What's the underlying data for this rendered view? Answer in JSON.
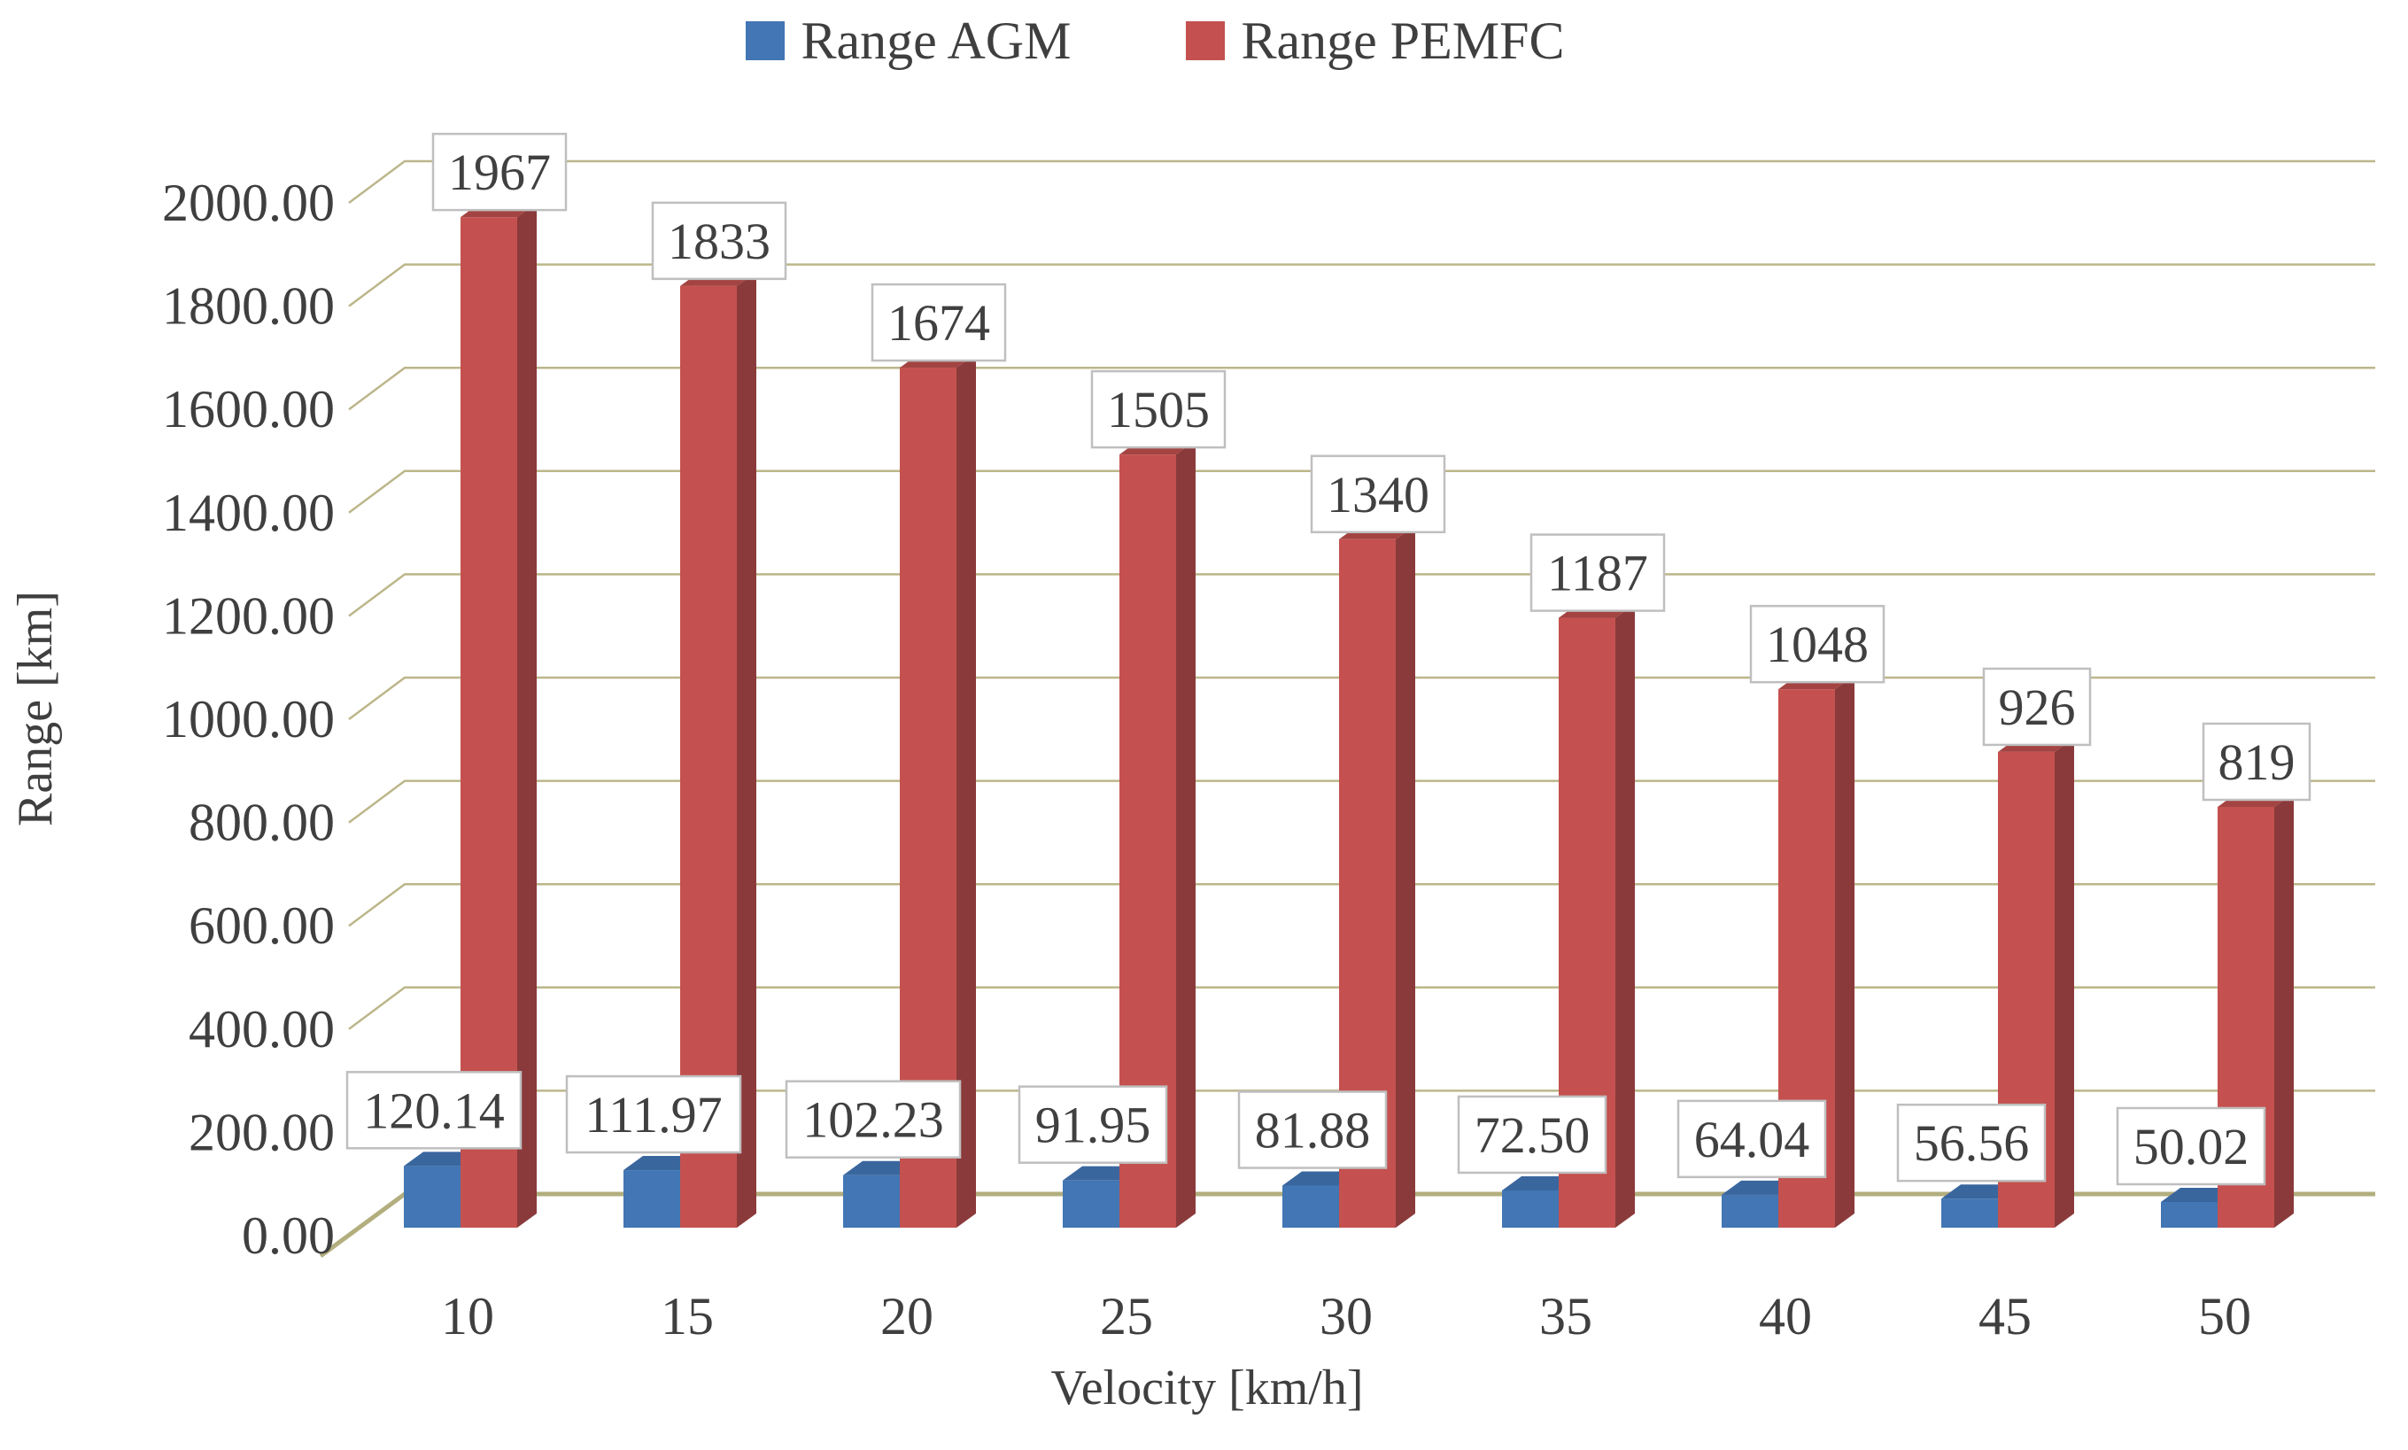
{
  "legend": {
    "items": [
      {
        "id": "agm",
        "label": "Range AGM",
        "swatch_color": "#4276B4"
      },
      {
        "id": "pemfc",
        "label": "Range PEMFC",
        "swatch_color": "#C4514F"
      }
    ]
  },
  "y_axis": {
    "title": "Range [km]",
    "ticks": [
      "0.00",
      "200.00",
      "400.00",
      "600.00",
      "800.00",
      "1000.00",
      "1200.00",
      "1400.00",
      "1600.00",
      "1800.00",
      "2000.00"
    ]
  },
  "x_axis": {
    "title": "Velocity [km/h]",
    "ticks": [
      "10",
      "15",
      "20",
      "25",
      "30",
      "35",
      "40",
      "45",
      "50"
    ]
  },
  "chart_data": {
    "type": "bar",
    "style": "3d-clustered-column",
    "title": "",
    "xlabel": "Velocity [km/h]",
    "ylabel": "Range [km]",
    "categories": [
      10,
      15,
      20,
      25,
      30,
      35,
      40,
      45,
      50
    ],
    "series": [
      {
        "name": "Range AGM",
        "color": "#4276B4",
        "values": [
          120.14,
          111.97,
          102.23,
          91.95,
          81.88,
          72.5,
          64.04,
          56.56,
          50.02
        ],
        "data_labels": [
          "120.14",
          "111.97",
          "102.23",
          "91.95",
          "81.88",
          "72.50",
          "64.04",
          "56.56",
          "50.02"
        ]
      },
      {
        "name": "Range PEMFC",
        "color": "#C4514F",
        "values": [
          1967,
          1833,
          1674,
          1505,
          1340,
          1187,
          1048,
          926,
          819
        ],
        "data_labels": [
          "1967",
          "1833",
          "1674",
          "1505",
          "1340",
          "1187",
          "1048",
          "926",
          "819"
        ]
      }
    ],
    "ylim": [
      0,
      2000
    ],
    "ytick_step": 200,
    "grid": true,
    "legend_position": "top",
    "data_labels_shown": true
  },
  "colors": {
    "agm_front": "#4276B4",
    "agm_side": "#2E5585",
    "agm_top": "#3A669E",
    "pemfc_front": "#C4514F",
    "pemfc_side": "#8B3A3B",
    "pemfc_top": "#A34442",
    "gridline": "#BCB68A",
    "baseline": "#B3AE7E",
    "label_box_fill": "#FFFFFF",
    "label_box_border": "#BFBFBF",
    "text": "#3F3F3F"
  }
}
